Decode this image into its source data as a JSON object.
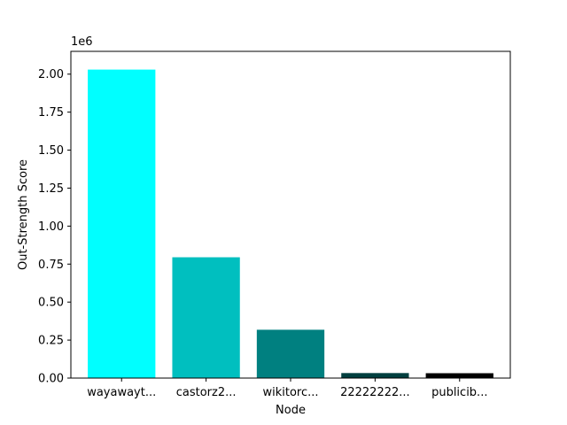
{
  "chart_data": {
    "type": "bar",
    "title": "",
    "xlabel": "Node",
    "ylabel": "Out-Strength Score",
    "y_offset_label": "1e6",
    "categories": [
      "wayawayt...",
      "castorz2...",
      "wikitorc...",
      "22222222...",
      "publicib..."
    ],
    "values": [
      2030000,
      795000,
      318000,
      33000,
      32000
    ],
    "colors": [
      "#00ffff",
      "#00bfbf",
      "#008080",
      "#003f3f",
      "#000000"
    ],
    "ylim": [
      0,
      2150000
    ],
    "yticks": [
      0,
      250000,
      500000,
      750000,
      1000000,
      1250000,
      1500000,
      1750000,
      2000000
    ],
    "ytick_labels": [
      "0.00",
      "0.25",
      "0.50",
      "0.75",
      "1.00",
      "1.25",
      "1.50",
      "1.75",
      "2.00"
    ],
    "grid": false,
    "legend": "none"
  }
}
